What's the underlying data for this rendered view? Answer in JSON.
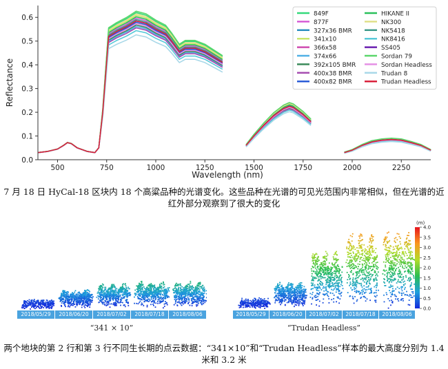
{
  "chart_data": {
    "type": "line",
    "xlabel": "Wavelength (nm)",
    "ylabel": "Reflectance",
    "xlim": [
      400,
      2400
    ],
    "ylim": [
      0,
      0.65
    ],
    "x_ticks": [
      500,
      750,
      1000,
      1250,
      1500,
      1750,
      2000,
      2250
    ],
    "y_ticks": [
      0.0,
      0.1,
      0.2,
      0.3,
      0.4,
      0.5,
      0.6
    ],
    "legend_placement": "top-right",
    "segments": [
      [
        400,
        1340
      ],
      [
        1460,
        1790
      ],
      [
        1960,
        2400
      ]
    ],
    "profile": {
      "x": [
        400,
        450,
        500,
        530,
        550,
        570,
        600,
        650,
        690,
        710,
        730,
        760,
        800,
        850,
        900,
        950,
        1000,
        1050,
        1080,
        1120,
        1150,
        1200,
        1250,
        1300,
        1340,
        1460,
        1500,
        1550,
        1600,
        1650,
        1680,
        1700,
        1750,
        1790,
        1960,
        2000,
        2050,
        2100,
        2150,
        2200,
        2250,
        2300,
        2350,
        2400
      ],
      "y": [
        0.03,
        0.035,
        0.045,
        0.06,
        0.072,
        0.068,
        0.05,
        0.035,
        0.03,
        0.05,
        0.2,
        0.52,
        0.54,
        0.56,
        0.585,
        0.575,
        0.55,
        0.53,
        0.5,
        0.455,
        0.47,
        0.47,
        0.455,
        0.43,
        0.41,
        0.06,
        0.1,
        0.145,
        0.185,
        0.215,
        0.225,
        0.22,
        0.19,
        0.16,
        0.03,
        0.04,
        0.06,
        0.075,
        0.082,
        0.085,
        0.082,
        0.072,
        0.06,
        0.04
      ]
    },
    "series": [
      {
        "name": "849F",
        "color": "#33d97a",
        "scale": 1.06
      },
      {
        "name": "877F",
        "color": "#d65bd6",
        "scale": 1.02
      },
      {
        "name": "327x36 BMR",
        "color": "#2b8fbf",
        "scale": 1.0
      },
      {
        "name": "341x10",
        "color": "#c8e66b",
        "scale": 1.04
      },
      {
        "name": "366x58",
        "color": "#cf4bb0",
        "scale": 0.98
      },
      {
        "name": "374x66",
        "color": "#4fb0e6",
        "scale": 0.96
      },
      {
        "name": "392x105 BMR",
        "color": "#3a8a5a",
        "scale": 0.97
      },
      {
        "name": "400x38 BMR",
        "color": "#a64db0",
        "scale": 0.95
      },
      {
        "name": "400x82 BMR",
        "color": "#2a5bd7",
        "scale": 0.99
      },
      {
        "name": "HIKANE II",
        "color": "#29c05a",
        "scale": 1.03
      },
      {
        "name": "NK300",
        "color": "#e0e08a",
        "scale": 1.05
      },
      {
        "name": "NK5418",
        "color": "#3e9a8a",
        "scale": 1.01
      },
      {
        "name": "NK8416",
        "color": "#57c9d9",
        "scale": 0.93
      },
      {
        "name": "SS405",
        "color": "#6a1fb0",
        "scale": 1.0
      },
      {
        "name": "Sordan 79",
        "color": "#5ad66a",
        "scale": 1.07
      },
      {
        "name": "Sordan Headless",
        "color": "#e590e5",
        "scale": 0.98
      },
      {
        "name": "Trudan 8",
        "color": "#a8d8e8",
        "scale": 0.9
      },
      {
        "name": "Trudan Headless",
        "color": "#d9203a",
        "scale": 1.0
      }
    ]
  },
  "caption1": "7 月 18 日 HyCal-18 区块内 18 个高粱品种的光谱变化。这些品种在光谱的可见光范围内非常相似，但在光谱的近红外部分观察到了很大的变化",
  "panels": [
    {
      "title": "“341 × 10”",
      "dates": [
        "2018/05/29",
        "2018/06/20",
        "2018/07/02",
        "2018/07/18",
        "2018/08/06"
      ],
      "heights": [
        0.25,
        0.9,
        1.3,
        1.4,
        1.4
      ]
    },
    {
      "title": "“Trudan Headless”",
      "dates": [
        "2018/05/29",
        "2018/06/20",
        "2018/07/02",
        "2018/07/18",
        "2018/08/06"
      ],
      "heights": [
        0.25,
        1.0,
        2.4,
        3.2,
        3.2
      ]
    }
  ],
  "colorbar": {
    "unit": "(m)",
    "ticks": [
      "4.0",
      "3.5",
      "3.0",
      "2.5",
      "2.0",
      "1.5",
      "1.0",
      "0.5",
      "0.0"
    ],
    "max": 4.0
  },
  "caption2": "两个地块的第 2 行和第 3 行不同生长期的点云数据：“341×10”和“Trudan Headless”样本的最大高度分别为 1.4 米和 3.2 米"
}
